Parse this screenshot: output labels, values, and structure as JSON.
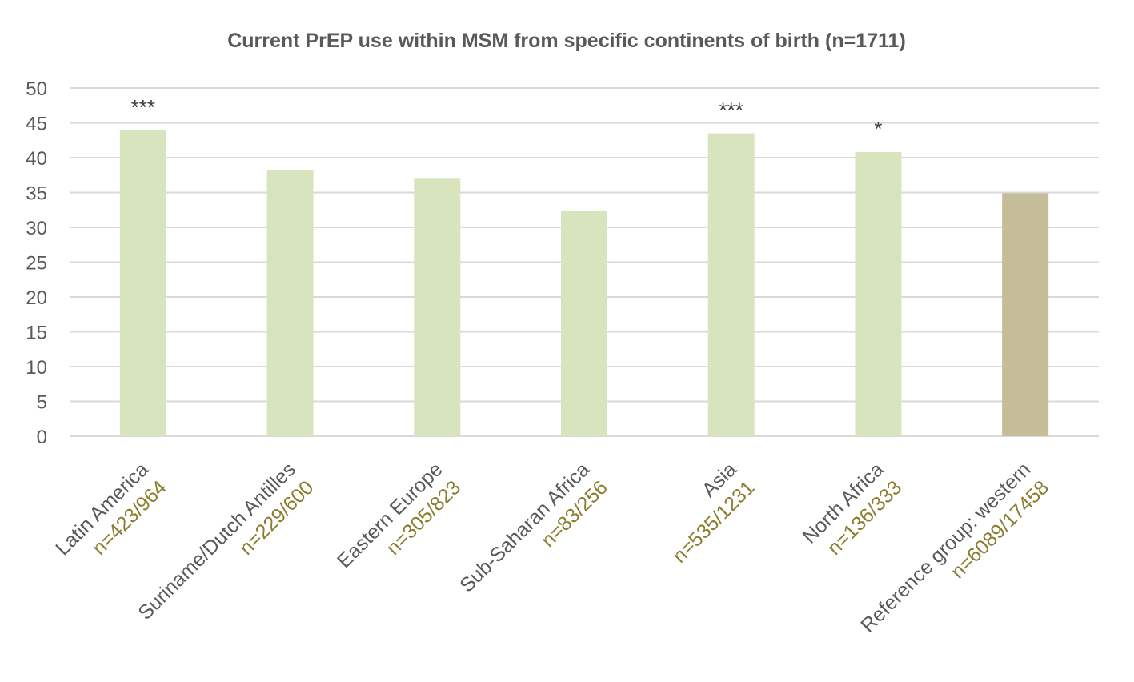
{
  "chart_data": {
    "type": "bar",
    "title": "Current PrEP use within MSM from specific continents of birth (n=1711)",
    "xlabel": "",
    "ylabel": "",
    "ylim": [
      0,
      50
    ],
    "yticks": [
      0,
      5,
      10,
      15,
      20,
      25,
      30,
      35,
      40,
      45,
      50
    ],
    "grid": true,
    "categories": [
      "Latin America",
      "Suriname/Dutch Antilles",
      "Eastern Europe",
      "Sub-Saharan Africa",
      "Asia",
      "North Africa",
      "Reference group: western"
    ],
    "sample_sizes": [
      "n=423/964",
      "n=229/600",
      "n=305/823",
      "n=83/256",
      "n=535/1231",
      "n=136/333",
      "n=6089/17458"
    ],
    "values": [
      43.9,
      38.2,
      37.1,
      32.4,
      43.5,
      40.8,
      34.9
    ],
    "significance": [
      "***",
      "",
      "",
      "",
      "***",
      "*",
      ""
    ],
    "colors": {
      "bar": "#d7e4bd",
      "reference_bar": "#c4bd97",
      "sample_size_text": "#8a7d2e",
      "axis_text": "#595959",
      "grid": "#d9d9d9"
    }
  }
}
